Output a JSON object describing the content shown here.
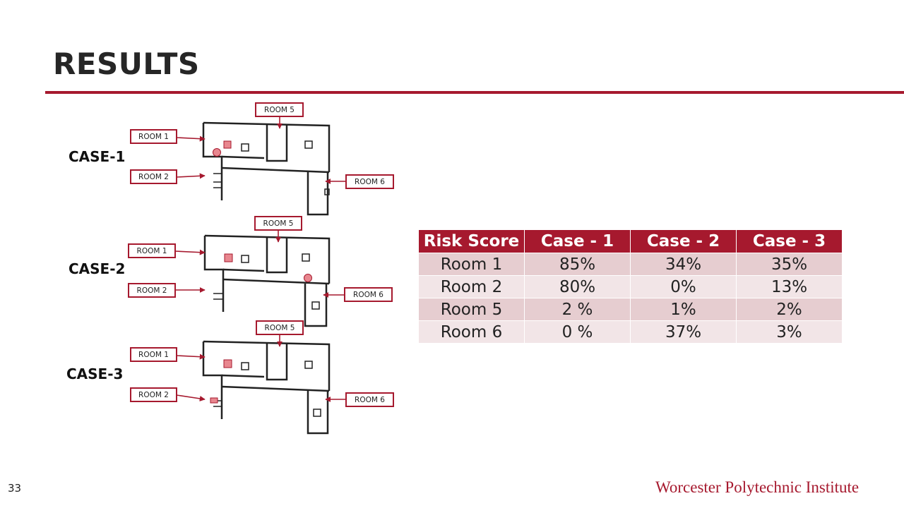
{
  "slide": {
    "title": "RESULTS",
    "page_number": "33",
    "footer_org": "Worcester Polytechnic Institute"
  },
  "cases": [
    {
      "label": "CASE-1",
      "rooms": {
        "room1": "ROOM 1",
        "room2": "ROOM 2",
        "room5": "ROOM 5",
        "room6": "ROOM 6"
      },
      "markers": [
        "circle-room1",
        "square-room1"
      ]
    },
    {
      "label": "CASE-2",
      "rooms": {
        "room1": "ROOM 1",
        "room2": "ROOM 2",
        "room5": "ROOM 5",
        "room6": "ROOM 6"
      },
      "markers": [
        "square-room1",
        "circle-room5"
      ]
    },
    {
      "label": "CASE-3",
      "rooms": {
        "room1": "ROOM 1",
        "room2": "ROOM 2",
        "room5": "ROOM 5",
        "room6": "ROOM 6"
      },
      "markers": [
        "square-room1",
        "square-room2"
      ]
    }
  ],
  "risk_table": {
    "headers": [
      "Risk Score",
      "Case - 1",
      "Case - 2",
      "Case - 3"
    ],
    "rows": [
      [
        "Room 1",
        "85%",
        "34%",
        "35%"
      ],
      [
        "Room 2",
        "80%",
        "0%",
        "13%"
      ],
      [
        "Room 5",
        "2 %",
        "1%",
        "2%"
      ],
      [
        "Room 6",
        "0 %",
        "37%",
        "3%"
      ]
    ]
  },
  "colors": {
    "accent": "#a6192e",
    "row_dark": "#e6cdd0",
    "row_light": "#f2e5e7",
    "marker": "#e8878f"
  }
}
